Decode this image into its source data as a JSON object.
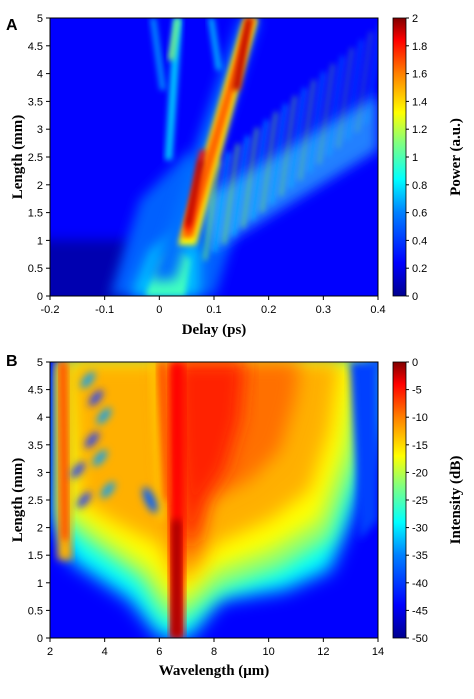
{
  "colormap": [
    "#00008f",
    "#0000ff",
    "#0080ff",
    "#00ffff",
    "#80ff80",
    "#ffff00",
    "#ff8000",
    "#ff0000",
    "#800000"
  ],
  "chart_data": [
    {
      "type": "heatmap",
      "panel_label": "A",
      "xlabel": "Delay (ps)",
      "ylabel": "Length (mm)",
      "colorbar_label": "Power (a.u.)",
      "xlim": [
        -0.2,
        0.4
      ],
      "ylim": [
        0,
        5
      ],
      "clim": [
        0,
        2
      ],
      "xticks": [
        "-0.2",
        "-0.1",
        "0",
        "0.1",
        "0.2",
        "0.3",
        "0.4"
      ],
      "yticks": [
        "0",
        "0.5",
        "1",
        "1.5",
        "2",
        "2.5",
        "3",
        "3.5",
        "4",
        "4.5",
        "5"
      ],
      "cticks": [
        "0",
        "0.2",
        "0.4",
        "0.6",
        "0.8",
        "1",
        "1.2",
        "1.4",
        "1.6",
        "1.8",
        "2"
      ],
      "features": [
        {
          "name": "main soliton trajectory",
          "delay_start": 0.035,
          "delay_end": 0.16,
          "length_start": 0.8,
          "length_end": 5.0,
          "peak_power": 2.0
        },
        {
          "name": "dispersive wave fringes",
          "delay_range": [
            0.08,
            0.4
          ],
          "length_range": [
            1.8,
            4.0
          ],
          "peak_power": 1.0
        },
        {
          "name": "secondary branch",
          "delay_start": 0.05,
          "delay_end": 0.05,
          "length_start": 2.5,
          "length_end": 5.0,
          "peak_power": 0.7
        }
      ]
    },
    {
      "type": "heatmap",
      "panel_label": "B",
      "xlabel": "Wavelength (μm)",
      "ylabel": "Length (mm)",
      "colorbar_label": "Intensity (dB)",
      "xlim": [
        2,
        14
      ],
      "ylim": [
        0,
        5
      ],
      "clim": [
        -50,
        0
      ],
      "xticks": [
        "2",
        "4",
        "6",
        "8",
        "10",
        "12",
        "14"
      ],
      "yticks": [
        "0",
        "0.5",
        "1",
        "1.5",
        "2",
        "2.5",
        "3",
        "3.5",
        "4",
        "4.5",
        "5"
      ],
      "cticks": [
        "0",
        "-5",
        "-10",
        "-15",
        "-20",
        "-25",
        "-30",
        "-35",
        "-40",
        "-45",
        "-50"
      ],
      "features": [
        {
          "name": "pump line",
          "wavelength": 6.4,
          "length_range": [
            0,
            5
          ],
          "level_db": 0
        },
        {
          "name": "supercontinuum",
          "wavelength_range": [
            2.2,
            13.5
          ],
          "length_range": [
            1.6,
            5
          ],
          "level_db": -15
        },
        {
          "name": "short-wave dispersive wave",
          "wavelength": 2.4,
          "length_range": [
            1.7,
            5
          ],
          "level_db": -5
        }
      ]
    }
  ]
}
